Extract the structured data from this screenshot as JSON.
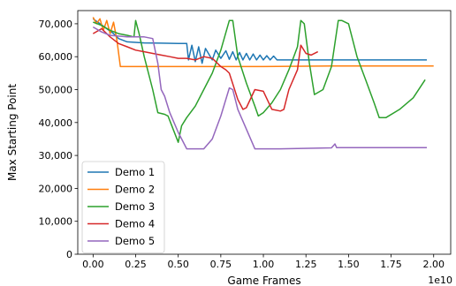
{
  "chart_data": {
    "type": "line",
    "title": "",
    "xlabel": "Game Frames",
    "ylabel": "Max Starting Point",
    "x_offset_label": "1e10",
    "xlim": [
      -0.09,
      2.1
    ],
    "ylim": [
      0,
      74000
    ],
    "x_ticks": [
      0,
      0.25,
      0.5,
      0.75,
      1.0,
      1.25,
      1.5,
      1.75,
      2.0
    ],
    "x_tick_labels": [
      "0.00",
      "0.25",
      "0.50",
      "0.75",
      "1.00",
      "1.25",
      "1.50",
      "1.75",
      "2.00"
    ],
    "y_ticks": [
      0,
      10000,
      20000,
      30000,
      40000,
      50000,
      60000,
      70000
    ],
    "y_tick_labels": [
      "0",
      "10,000",
      "20,000",
      "30,000",
      "40,000",
      "50,000",
      "60,000",
      "70,000"
    ],
    "grid": false,
    "legend_position": "lower-left",
    "series": [
      {
        "name": "Demo 1",
        "color": "#1f77b4",
        "points": [
          [
            0.0,
            71500
          ],
          [
            0.04,
            70000
          ],
          [
            0.08,
            68500
          ],
          [
            0.12,
            67000
          ],
          [
            0.15,
            65500
          ],
          [
            0.2,
            64500
          ],
          [
            0.3,
            64200
          ],
          [
            0.4,
            64100
          ],
          [
            0.5,
            64000
          ],
          [
            0.55,
            64000
          ],
          [
            0.56,
            59000
          ],
          [
            0.58,
            63500
          ],
          [
            0.6,
            58500
          ],
          [
            0.62,
            63000
          ],
          [
            0.64,
            58000
          ],
          [
            0.66,
            62500
          ],
          [
            0.7,
            59000
          ],
          [
            0.72,
            62000
          ],
          [
            0.75,
            59500
          ],
          [
            0.78,
            61800
          ],
          [
            0.8,
            59200
          ],
          [
            0.82,
            61500
          ],
          [
            0.84,
            59000
          ],
          [
            0.86,
            61300
          ],
          [
            0.88,
            59000
          ],
          [
            0.9,
            61000
          ],
          [
            0.92,
            59000
          ],
          [
            0.94,
            60800
          ],
          [
            0.96,
            59000
          ],
          [
            0.98,
            60500
          ],
          [
            1.0,
            59000
          ],
          [
            1.02,
            60300
          ],
          [
            1.04,
            59000
          ],
          [
            1.06,
            60200
          ],
          [
            1.08,
            59000
          ],
          [
            1.2,
            59000
          ],
          [
            1.5,
            59000
          ],
          [
            1.8,
            59000
          ],
          [
            1.96,
            59000
          ]
        ]
      },
      {
        "name": "Demo 2",
        "color": "#ff7f0e",
        "points": [
          [
            0.0,
            72000
          ],
          [
            0.02,
            70000
          ],
          [
            0.04,
            71500
          ],
          [
            0.06,
            68000
          ],
          [
            0.08,
            71000
          ],
          [
            0.1,
            67000
          ],
          [
            0.12,
            70500
          ],
          [
            0.14,
            65000
          ],
          [
            0.16,
            57000
          ],
          [
            0.3,
            57000
          ],
          [
            0.6,
            57000
          ],
          [
            1.0,
            57000
          ],
          [
            1.4,
            57200
          ],
          [
            1.8,
            57200
          ],
          [
            2.0,
            57200
          ]
        ]
      },
      {
        "name": "Demo 3",
        "color": "#2ca02c",
        "points": [
          [
            0.0,
            70500
          ],
          [
            0.05,
            69500
          ],
          [
            0.1,
            68000
          ],
          [
            0.15,
            67000
          ],
          [
            0.2,
            66500
          ],
          [
            0.24,
            66000
          ],
          [
            0.25,
            71000
          ],
          [
            0.27,
            67000
          ],
          [
            0.3,
            60000
          ],
          [
            0.35,
            50000
          ],
          [
            0.38,
            43000
          ],
          [
            0.42,
            42500
          ],
          [
            0.44,
            42000
          ],
          [
            0.47,
            38000
          ],
          [
            0.5,
            34000
          ],
          [
            0.52,
            39000
          ],
          [
            0.55,
            41500
          ],
          [
            0.6,
            45000
          ],
          [
            0.65,
            50000
          ],
          [
            0.7,
            55000
          ],
          [
            0.75,
            62000
          ],
          [
            0.8,
            71000
          ],
          [
            0.82,
            71000
          ],
          [
            0.85,
            60000
          ],
          [
            0.9,
            52000
          ],
          [
            0.95,
            45000
          ],
          [
            0.97,
            42000
          ],
          [
            1.0,
            43000
          ],
          [
            1.05,
            46000
          ],
          [
            1.1,
            50000
          ],
          [
            1.15,
            56000
          ],
          [
            1.2,
            63000
          ],
          [
            1.22,
            71000
          ],
          [
            1.24,
            70000
          ],
          [
            1.27,
            58000
          ],
          [
            1.3,
            48500
          ],
          [
            1.35,
            50000
          ],
          [
            1.4,
            57000
          ],
          [
            1.44,
            71000
          ],
          [
            1.46,
            71000
          ],
          [
            1.5,
            70000
          ],
          [
            1.55,
            60000
          ],
          [
            1.6,
            53000
          ],
          [
            1.65,
            46000
          ],
          [
            1.68,
            41500
          ],
          [
            1.72,
            41500
          ],
          [
            1.8,
            44000
          ],
          [
            1.88,
            47500
          ],
          [
            1.95,
            53000
          ]
        ]
      },
      {
        "name": "Demo 4",
        "color": "#d62728",
        "points": [
          [
            0.0,
            67000
          ],
          [
            0.05,
            68500
          ],
          [
            0.1,
            66000
          ],
          [
            0.15,
            64000
          ],
          [
            0.2,
            63000
          ],
          [
            0.25,
            62000
          ],
          [
            0.3,
            61500
          ],
          [
            0.35,
            61000
          ],
          [
            0.4,
            60500
          ],
          [
            0.45,
            60000
          ],
          [
            0.5,
            59500
          ],
          [
            0.55,
            59500
          ],
          [
            0.6,
            59000
          ],
          [
            0.65,
            60000
          ],
          [
            0.7,
            59500
          ],
          [
            0.75,
            57000
          ],
          [
            0.78,
            56000
          ],
          [
            0.8,
            55000
          ],
          [
            0.85,
            47000
          ],
          [
            0.88,
            44000
          ],
          [
            0.9,
            44500
          ],
          [
            0.95,
            50000
          ],
          [
            1.0,
            49500
          ],
          [
            1.05,
            44000
          ],
          [
            1.1,
            43500
          ],
          [
            1.12,
            44000
          ],
          [
            1.15,
            50000
          ],
          [
            1.2,
            56000
          ],
          [
            1.22,
            63500
          ],
          [
            1.25,
            61000
          ],
          [
            1.28,
            60500
          ],
          [
            1.32,
            61500
          ]
        ]
      },
      {
        "name": "Demo 5",
        "color": "#9467bd",
        "points": [
          [
            0.0,
            69000
          ],
          [
            0.05,
            67500
          ],
          [
            0.1,
            66500
          ],
          [
            0.2,
            66000
          ],
          [
            0.3,
            66000
          ],
          [
            0.35,
            65500
          ],
          [
            0.38,
            58000
          ],
          [
            0.4,
            50000
          ],
          [
            0.42,
            48000
          ],
          [
            0.45,
            43000
          ],
          [
            0.5,
            37000
          ],
          [
            0.55,
            32000
          ],
          [
            0.6,
            32000
          ],
          [
            0.65,
            32000
          ],
          [
            0.7,
            35000
          ],
          [
            0.75,
            42000
          ],
          [
            0.8,
            50500
          ],
          [
            0.82,
            50000
          ],
          [
            0.85,
            44000
          ],
          [
            0.9,
            38000
          ],
          [
            0.95,
            32000
          ],
          [
            1.0,
            32000
          ],
          [
            1.1,
            32000
          ],
          [
            1.3,
            32200
          ],
          [
            1.4,
            32300
          ],
          [
            1.42,
            33500
          ],
          [
            1.43,
            32400
          ],
          [
            1.6,
            32400
          ],
          [
            1.8,
            32400
          ],
          [
            1.96,
            32400
          ]
        ]
      }
    ]
  }
}
